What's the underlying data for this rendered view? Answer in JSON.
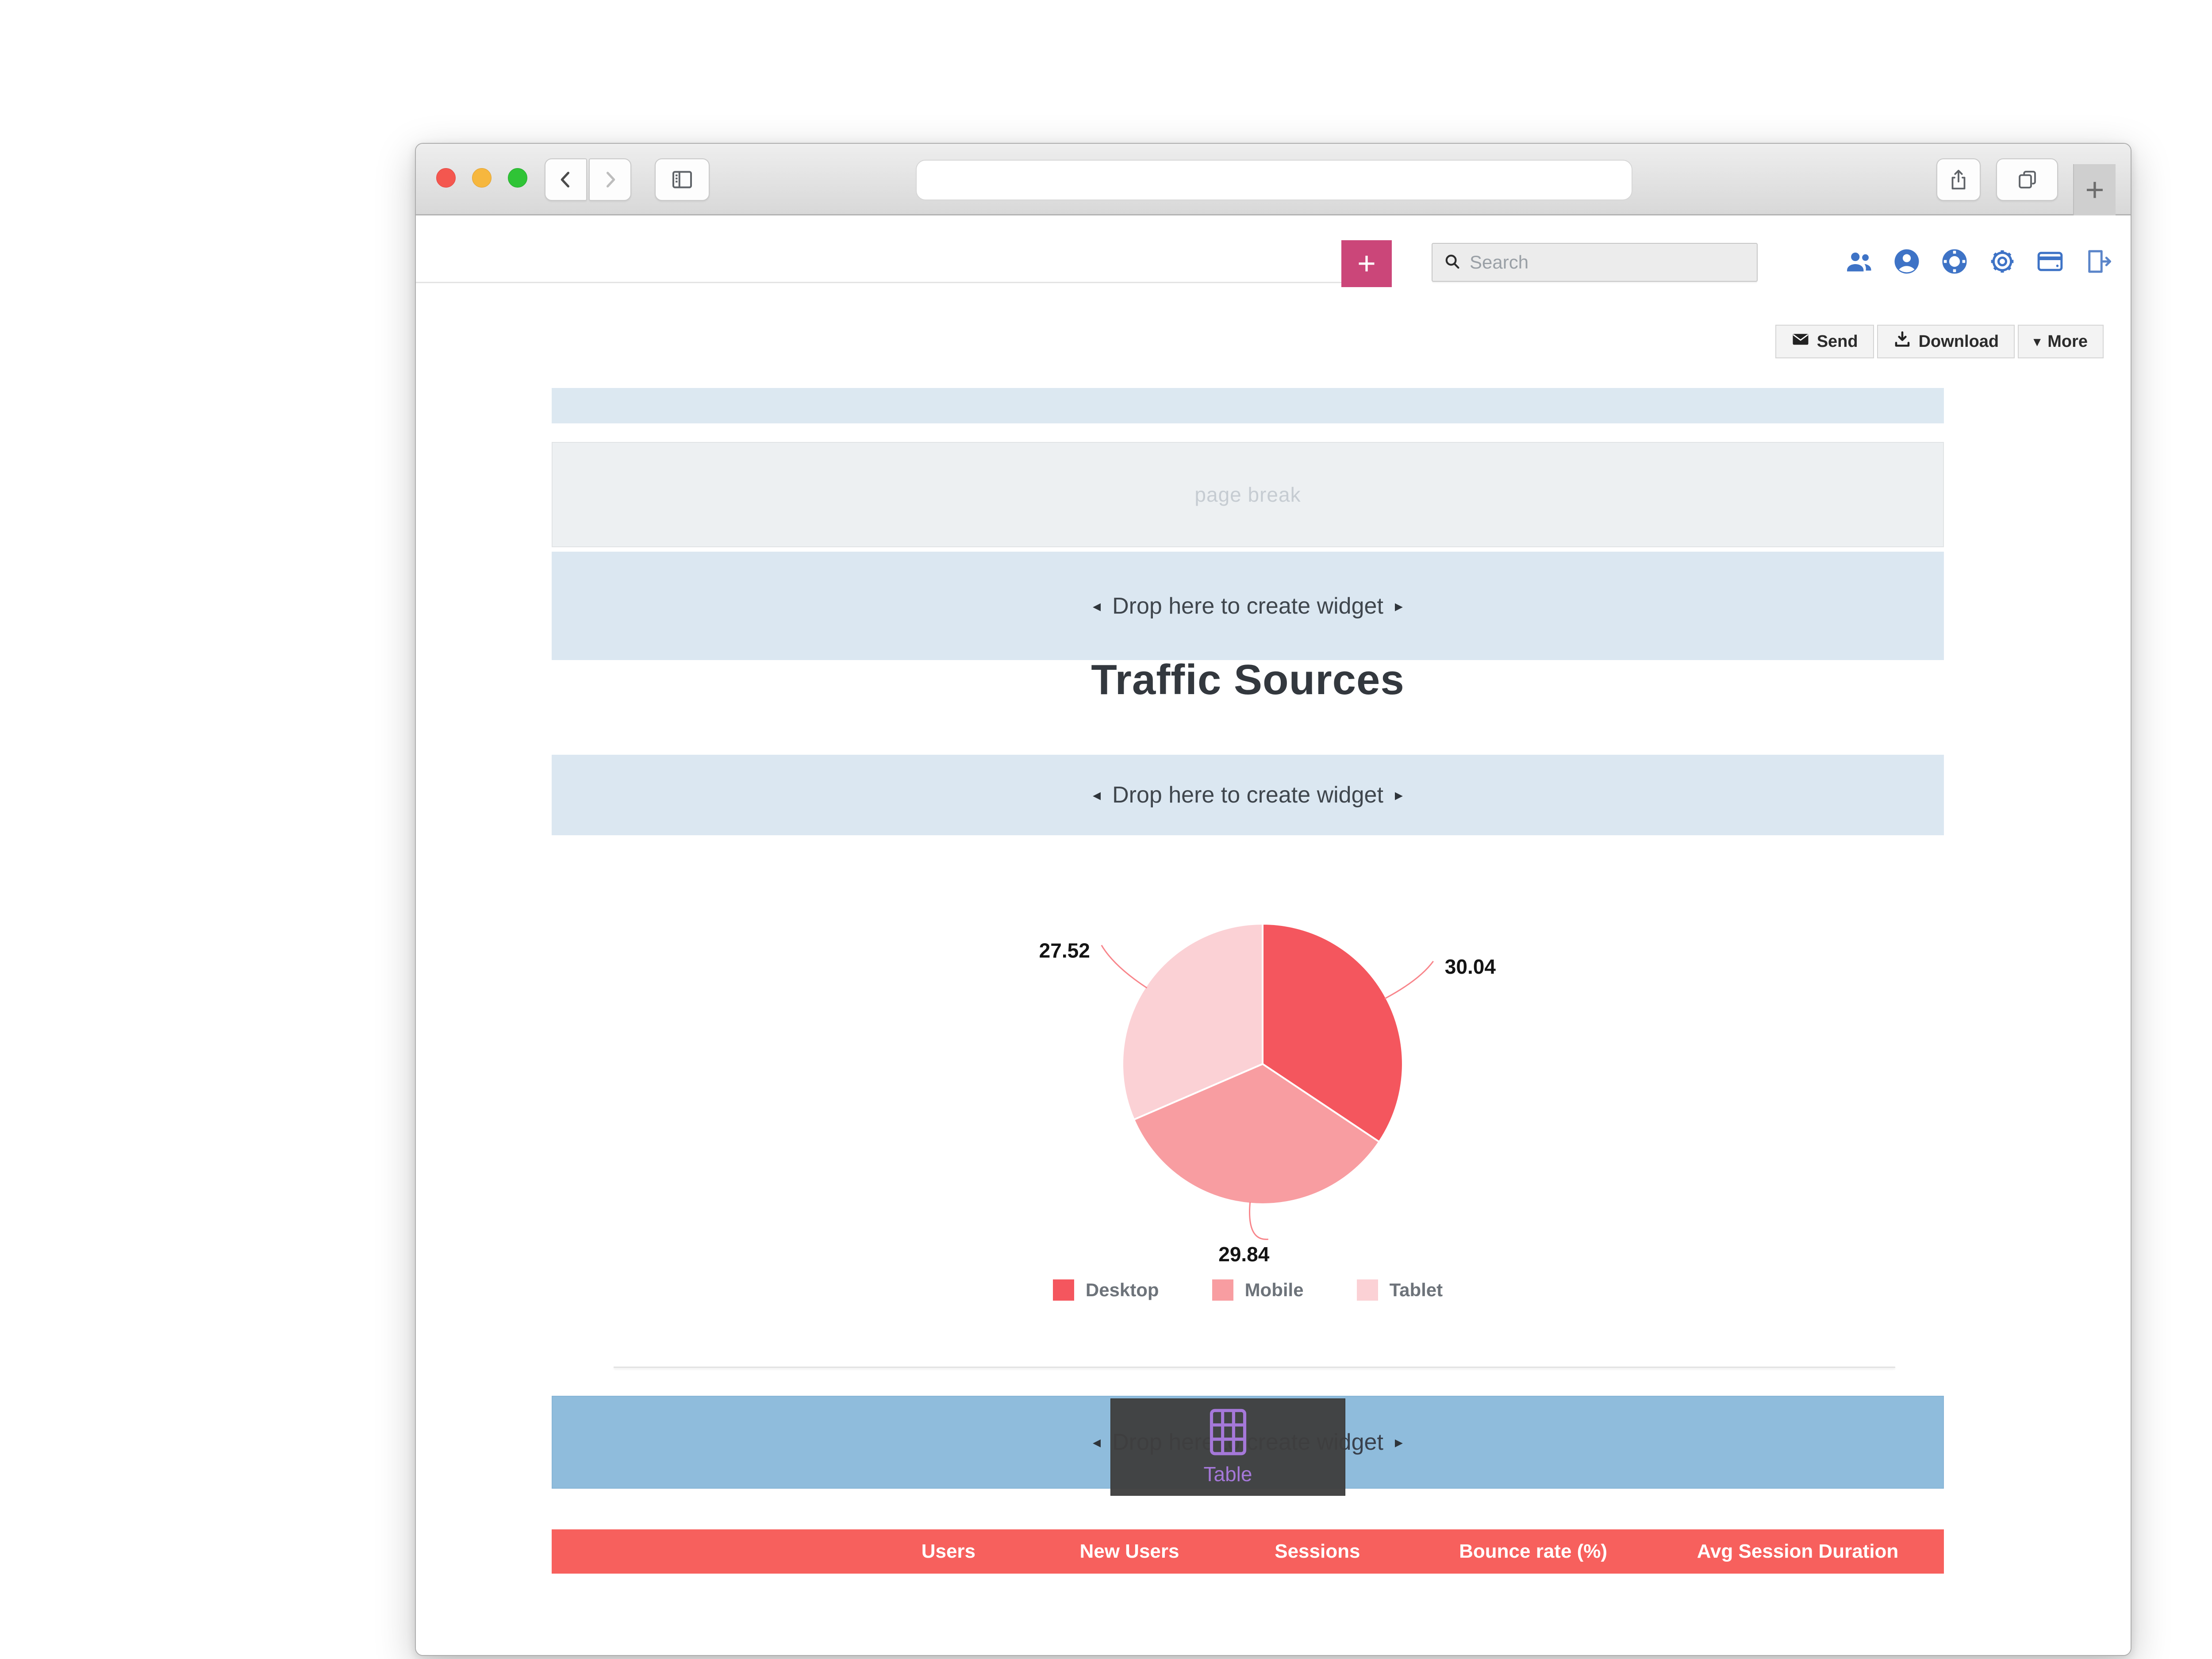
{
  "browser": {
    "address_value": "",
    "new_tab_label": "+"
  },
  "app_header": {
    "add_button_label": "+",
    "search_placeholder": "Search",
    "icons": [
      "users-icon",
      "profile-icon",
      "help-icon",
      "settings-icon",
      "billing-icon",
      "logout-icon"
    ],
    "accent_color": "#cb4679",
    "icon_color": "#3e73c6"
  },
  "toolbar": {
    "send_label": "Send",
    "download_label": "Download",
    "more_label": "More",
    "more_caret": "▾"
  },
  "report": {
    "page_break_label": "page break",
    "drop_zone_label": "Drop here to create widget",
    "arrow_left": "◂",
    "arrow_right": "▸",
    "section_title": "Traffic Sources",
    "drop_zone_color": "#dbe7f1",
    "active_drop_zone_color": "#8fbcdc"
  },
  "chart_data": {
    "type": "pie",
    "title": "Traffic Sources",
    "labels": [
      "Desktop",
      "Mobile",
      "Tablet"
    ],
    "values": [
      30.04,
      29.84,
      27.52
    ],
    "colors": [
      "#f4565e",
      "#f89da1",
      "#fbd1d5"
    ],
    "legend_position": "bottom",
    "data_labels": [
      "30.04",
      "29.84",
      "27.52"
    ]
  },
  "drag_overlay": {
    "label": "Table",
    "icon": "table-grid-icon",
    "icon_color": "#a578d9"
  },
  "table": {
    "headers": [
      "",
      "Users",
      "New Users",
      "Sessions",
      "Bounce rate (%)",
      "Avg Session Duration"
    ],
    "header_bg": "#f7605d"
  }
}
